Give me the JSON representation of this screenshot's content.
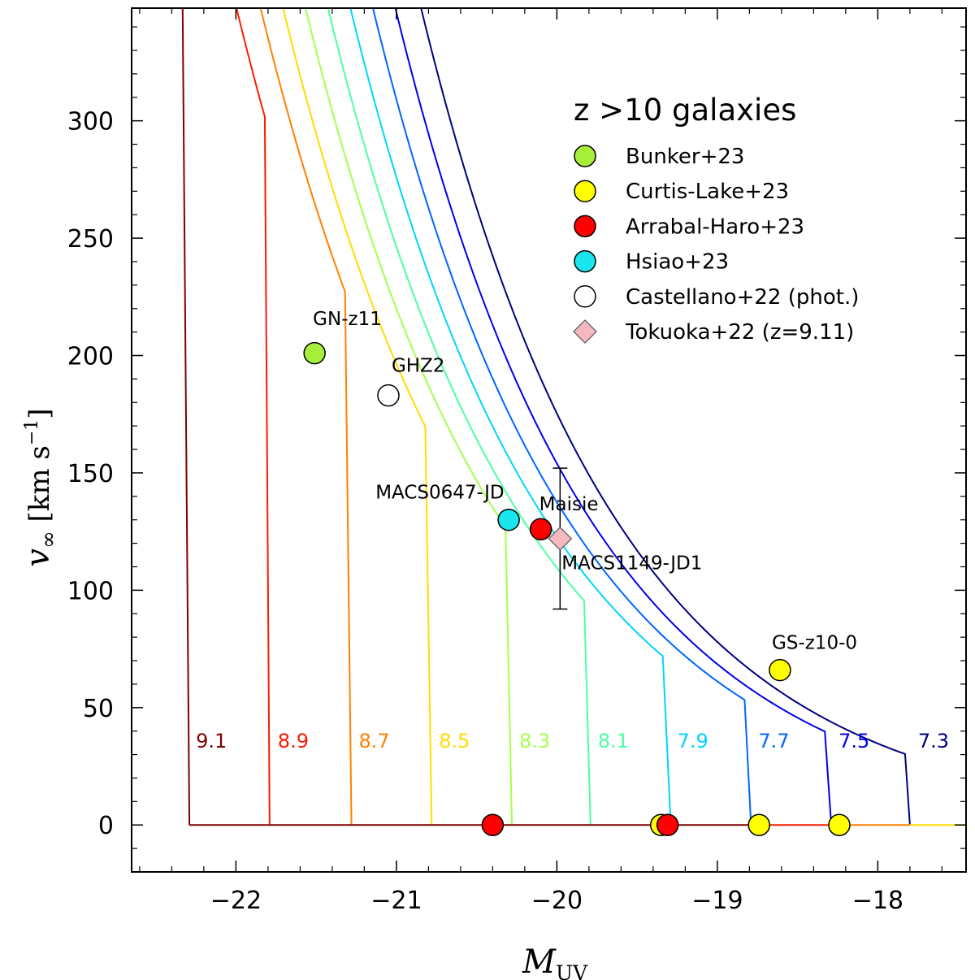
{
  "chart_data": {
    "type": "line",
    "title": "",
    "xlabel_main": "M",
    "xlabel_sub": "UV",
    "ylabel_var": "v",
    "ylabel_sub": "∞",
    "ylabel_units": "[km s",
    "ylabel_exp": "−1",
    "ylabel_close": "]",
    "xlim": [
      -22.65,
      -17.45
    ],
    "ylim": [
      -20,
      348
    ],
    "xticks": [
      -22,
      -21,
      -20,
      -19,
      -18
    ],
    "xtick_labels": [
      "−22",
      "−21",
      "−20",
      "−19",
      "−18"
    ],
    "yticks": [
      0,
      50,
      100,
      150,
      200,
      250,
      300
    ],
    "ytick_labels": [
      "0",
      "50",
      "100",
      "150",
      "200",
      "250",
      "300"
    ],
    "envelope": {
      "M0": -19.0,
      "v0": 78,
      "k": 0.81
    },
    "series": [
      {
        "name": "9.1",
        "color": "#7f0000",
        "offset": -1.28,
        "break_x": -22.34,
        "bottom_x": -22.29
      },
      {
        "name": "8.9",
        "color": "#ff1a00",
        "offset": -1.15,
        "break_x": -21.82,
        "bottom_x": -21.79
      },
      {
        "name": "8.7",
        "color": "#ff8000",
        "offset": -1.0,
        "break_x": -21.32,
        "bottom_x": -21.28
      },
      {
        "name": "8.5",
        "color": "#ffdd00",
        "offset": -0.86,
        "break_x": -20.82,
        "bottom_x": -20.78
      },
      {
        "name": "8.3",
        "color": "#a6ff4d",
        "offset": -0.72,
        "break_x": -20.32,
        "bottom_x": -20.28
      },
      {
        "name": "8.1",
        "color": "#4dffa6",
        "offset": -0.58,
        "break_x": -19.83,
        "bottom_x": -19.79
      },
      {
        "name": "7.9",
        "color": "#00d5ff",
        "offset": -0.44,
        "break_x": -19.34,
        "bottom_x": -19.29
      },
      {
        "name": "7.7",
        "color": "#0066ff",
        "offset": -0.3,
        "break_x": -18.83,
        "bottom_x": -18.79
      },
      {
        "name": "7.5",
        "color": "#0000ee",
        "offset": -0.16,
        "break_x": -18.33,
        "bottom_x": -18.29
      },
      {
        "name": "7.3",
        "color": "#000080",
        "offset": 0.0,
        "break_x": -17.83,
        "bottom_x": -17.8
      }
    ],
    "curve_label_y": 33,
    "baseline_segments": [
      {
        "x0": -22.29,
        "x1": -18.79,
        "color": "#7f0000"
      },
      {
        "x0": -18.79,
        "x1": -18.29,
        "color": "#ff1a00"
      },
      {
        "x0": -18.29,
        "x1": -17.8,
        "color": "#ff8000"
      },
      {
        "x0": -17.8,
        "x1": -17.45,
        "color": "#ffdd00"
      }
    ],
    "points": [
      {
        "x": -21.51,
        "y": 201,
        "fill": "#a6f03c",
        "shape": "circle"
      },
      {
        "x": -21.05,
        "y": 183,
        "fill": "#ffffff",
        "shape": "circle"
      },
      {
        "x": -20.3,
        "y": 130,
        "fill": "#19e6ee",
        "shape": "circle"
      },
      {
        "x": -20.1,
        "y": 126,
        "fill": "#ff0000",
        "shape": "circle"
      },
      {
        "x": -18.61,
        "y": 66,
        "fill": "#ffff00",
        "shape": "circle"
      },
      {
        "x": -19.35,
        "y": 0,
        "fill": "#ffff00",
        "shape": "circle"
      },
      {
        "x": -18.74,
        "y": 0,
        "fill": "#ffff00",
        "shape": "circle"
      },
      {
        "x": -18.24,
        "y": 0,
        "fill": "#ffff00",
        "shape": "circle"
      },
      {
        "x": -20.4,
        "y": 0,
        "fill": "#ff0000",
        "shape": "circle"
      },
      {
        "x": -19.31,
        "y": 0,
        "fill": "#ff0000",
        "shape": "circle"
      },
      {
        "x": -19.98,
        "y": 122,
        "fill": "#f6b8c0",
        "shape": "diamond"
      }
    ],
    "error_bar": {
      "x": -19.98,
      "y_low": 92,
      "y_high": 152
    },
    "annotations": [
      {
        "text": "GN-z11",
        "x": -21.52,
        "y": 213
      },
      {
        "text": "GHZ2",
        "x": -21.03,
        "y": 193
      },
      {
        "text": "MACS0647-JD",
        "x": -21.13,
        "y": 139
      },
      {
        "text": "Maisie",
        "x": -20.11,
        "y": 134
      },
      {
        "text": "MACS1149-JD1",
        "x": -19.97,
        "y": 109
      },
      {
        "text": "GS-z10-0",
        "x": -18.66,
        "y": 75
      }
    ],
    "legend": {
      "title": "z >10 galaxies",
      "position": "top-right",
      "entries": [
        {
          "label": "Bunker+23",
          "fill": "#a6f03c",
          "shape": "circle"
        },
        {
          "label": "Curtis-Lake+23",
          "fill": "#ffff00",
          "shape": "circle"
        },
        {
          "label": "Arrabal-Haro+23",
          "fill": "#ff0000",
          "shape": "circle"
        },
        {
          "label": "Hsiao+23",
          "fill": "#19e6ee",
          "shape": "circle"
        },
        {
          "label": "Castellano+22 (phot.)",
          "fill": "#ffffff",
          "shape": "circle"
        },
        {
          "label": "Tokuoka+22 (z=9.11)",
          "fill": "#f6b8c0",
          "shape": "diamond"
        }
      ]
    }
  }
}
